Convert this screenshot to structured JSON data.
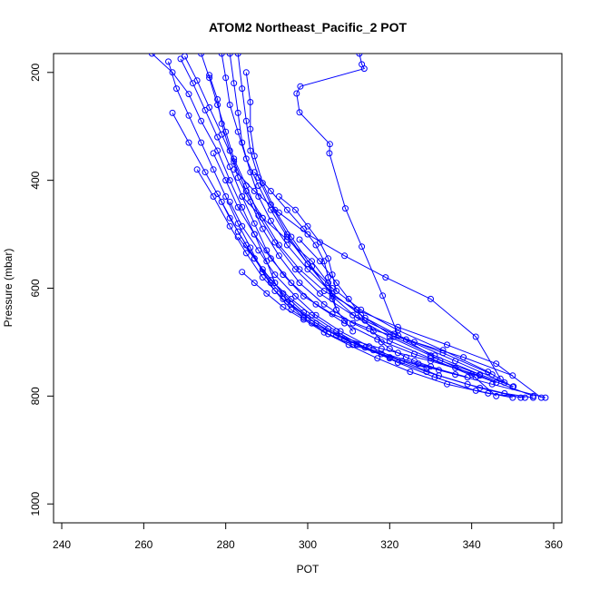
{
  "chart_data": {
    "type": "line",
    "title": "ATOM2 Northeast_Pacific_2 POT",
    "xlabel": "POT",
    "ylabel": "Pressure (mbar)",
    "xlim": [
      238,
      362
    ],
    "ylim": [
      1035,
      165
    ],
    "y_reversed": true,
    "x_ticks": [
      240,
      260,
      280,
      300,
      320,
      340,
      360
    ],
    "y_ticks": [
      200,
      400,
      600,
      800,
      1000
    ],
    "grid": false,
    "legend": "none",
    "color": "#0000ff",
    "marker": "open-circle",
    "series": [
      {
        "x": [
          312.6,
          313.2,
          313.8,
          298.2,
          297.3,
          298.0,
          305.4,
          305.3,
          309.2,
          313.2,
          318.3,
          322.1,
          332.3,
          350.2
        ],
        "y": [
          165,
          185,
          193,
          226,
          239,
          274,
          333,
          350,
          452,
          523,
          614,
          688,
          734,
          782
        ]
      },
      {
        "x": [
          262,
          267,
          271,
          274,
          278,
          281,
          284,
          287,
          290,
          292,
          295,
          299,
          305,
          311,
          320,
          332,
          345,
          358
        ],
        "y": [
          165,
          200,
          240,
          290,
          345,
          400,
          450,
          500,
          550,
          590,
          625,
          655,
          685,
          705,
          728,
          752,
          778,
          803
        ]
      },
      {
        "x": [
          266,
          268,
          271,
          274,
          277,
          280,
          283,
          286,
          289,
          292,
          296,
          301,
          308,
          318,
          330,
          342,
          355
        ],
        "y": [
          180,
          230,
          280,
          330,
          380,
          430,
          480,
          525,
          570,
          605,
          640,
          665,
          690,
          712,
          735,
          762,
          800
        ]
      },
      {
        "x": [
          269,
          272,
          275,
          278,
          281,
          284,
          287,
          290,
          294,
          299,
          306,
          315,
          326,
          338,
          350
        ],
        "y": [
          175,
          220,
          270,
          320,
          375,
          430,
          480,
          530,
          575,
          615,
          648,
          675,
          700,
          728,
          762
        ]
      },
      {
        "x": [
          270,
          273,
          276,
          279,
          282,
          285,
          289,
          293,
          298,
          304,
          312,
          322,
          334,
          346,
          357
        ],
        "y": [
          170,
          215,
          265,
          315,
          365,
          420,
          470,
          520,
          565,
          605,
          640,
          672,
          705,
          740,
          803
        ]
      },
      {
        "x": [
          274,
          276,
          278,
          280,
          282,
          285,
          288,
          292,
          297,
          303,
          311,
          321,
          333,
          345
        ],
        "y": [
          165,
          210,
          260,
          310,
          360,
          410,
          465,
          515,
          565,
          610,
          650,
          685,
          720,
          760
        ]
      },
      {
        "x": [
          276,
          278,
          279,
          281,
          283,
          286,
          289,
          293,
          298,
          304,
          311,
          320,
          330,
          341
        ],
        "y": [
          205,
          250,
          295,
          345,
          395,
          440,
          490,
          540,
          590,
          630,
          665,
          698,
          730,
          765
        ]
      },
      {
        "x": [
          279,
          280,
          281,
          283,
          285,
          288,
          291,
          295,
          300,
          306,
          313,
          322,
          333,
          344,
          350
        ],
        "y": [
          165,
          210,
          260,
          310,
          360,
          410,
          455,
          505,
          555,
          600,
          640,
          678,
          715,
          755,
          783
        ]
      },
      {
        "x": [
          281,
          282,
          283,
          284,
          286,
          288,
          291,
          295,
          300,
          306,
          313,
          321,
          331,
          342
        ],
        "y": [
          165,
          220,
          275,
          330,
          385,
          430,
          475,
          520,
          565,
          610,
          650,
          690,
          725,
          760
        ]
      },
      {
        "x": [
          283,
          284,
          285,
          286,
          288,
          291,
          295,
          300,
          306,
          314,
          324,
          336,
          348
        ],
        "y": [
          165,
          230,
          290,
          345,
          395,
          445,
          500,
          555,
          610,
          655,
          695,
          735,
          775
        ]
      },
      {
        "x": [
          285,
          286,
          286,
          287,
          289,
          292,
          296,
          301,
          306,
          312,
          320,
          330,
          340,
          346
        ],
        "y": [
          200,
          255,
          305,
          355,
          405,
          455,
          505,
          560,
          615,
          655,
          690,
          725,
          760,
          800
        ]
      },
      {
        "x": [
          273,
          277,
          281,
          285,
          289,
          294,
          300,
          307,
          316,
          327,
          339
        ],
        "y": [
          380,
          430,
          485,
          535,
          580,
          620,
          655,
          688,
          715,
          740,
          765
        ]
      },
      {
        "x": [
          267,
          271,
          275,
          279,
          283,
          287,
          291,
          296,
          302,
          309,
          318,
          329
        ],
        "y": [
          275,
          330,
          385,
          440,
          495,
          545,
          590,
          630,
          665,
          695,
          722,
          748
        ]
      },
      {
        "x": [
          278,
          281,
          285,
          289,
          294,
          299,
          305,
          312,
          320,
          329,
          339,
          348,
          355
        ],
        "y": [
          425,
          470,
          520,
          565,
          610,
          645,
          675,
          705,
          730,
          755,
          778,
          795,
          803
        ]
      },
      {
        "x": [
          277,
          280,
          283,
          287,
          291,
          296,
          302,
          309,
          317,
          326,
          336,
          346
        ],
        "y": [
          350,
          400,
          450,
          500,
          545,
          590,
          630,
          665,
          695,
          722,
          748,
          775
        ]
      },
      {
        "x": [
          281,
          284,
          288,
          292,
          297,
          302,
          308,
          315,
          323,
          332,
          342,
          352
        ],
        "y": [
          440,
          485,
          530,
          575,
          615,
          650,
          680,
          708,
          735,
          762,
          785,
          803
        ]
      },
      {
        "x": [
          283,
          287,
          291,
          296,
          301,
          307,
          314,
          322,
          331,
          341,
          350
        ],
        "y": [
          505,
          545,
          585,
          620,
          650,
          680,
          710,
          738,
          765,
          790,
          803
        ]
      },
      {
        "x": [
          284,
          287,
          290,
          294,
          299,
          304,
          310,
          317,
          325,
          334,
          344,
          353
        ],
        "y": [
          570,
          590,
          610,
          635,
          658,
          682,
          705,
          730,
          755,
          778,
          795,
          803
        ]
      },
      {
        "x": [
          282,
          287,
          293,
          300,
          309,
          319,
          330,
          341,
          347
        ],
        "y": [
          380,
          420,
          460,
          500,
          540,
          580,
          620,
          690,
          768
        ]
      },
      {
        "x": [
          284,
          289,
          295,
          301,
          305,
          306,
          307,
          309,
          311
        ],
        "y": [
          430,
          470,
          510,
          550,
          590,
          620,
          640,
          660,
          680
        ]
      },
      {
        "x": [
          287,
          291,
          295,
          299,
          302,
          304,
          305,
          306,
          307
        ],
        "y": [
          385,
          420,
          455,
          490,
          520,
          550,
          580,
          610,
          640
        ]
      },
      {
        "x": [
          293,
          297,
          300,
          303,
          305,
          306,
          307
        ],
        "y": [
          430,
          455,
          485,
          515,
          545,
          575,
          605
        ]
      },
      {
        "x": [
          298,
          303,
          307,
          310,
          312,
          314,
          316,
          318,
          320,
          322,
          324,
          326,
          330,
          336
        ],
        "y": [
          510,
          550,
          590,
          620,
          640,
          660,
          680,
          700,
          712,
          720,
          728,
          735,
          745,
          760
        ]
      }
    ]
  }
}
